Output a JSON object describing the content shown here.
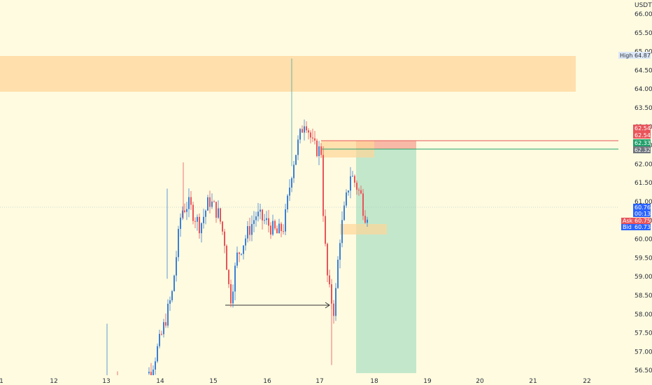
{
  "price_scale": {
    "currency": "USDT",
    "ticks": [
      "66.00",
      "65.50",
      "65.00",
      "64.50",
      "64.00",
      "63.50",
      "63.00",
      "62.50",
      "62.00",
      "61.50",
      "61.00",
      "60.50",
      "60.00",
      "59.50",
      "59.00",
      "58.50",
      "58.00",
      "57.50",
      "57.00",
      "56.50"
    ]
  },
  "time_scale": {
    "ticks": [
      {
        "label": "1",
        "bold": false
      },
      {
        "label": "12",
        "bold": true
      },
      {
        "label": "13",
        "bold": false
      },
      {
        "label": "14",
        "bold": false
      },
      {
        "label": "15",
        "bold": false
      },
      {
        "label": "16",
        "bold": false
      },
      {
        "label": "17",
        "bold": false
      },
      {
        "label": "18",
        "bold": false
      },
      {
        "label": "19",
        "bold": false
      },
      {
        "label": "20",
        "bold": false
      },
      {
        "label": "21",
        "bold": false
      },
      {
        "label": "22",
        "bold": false
      }
    ]
  },
  "price_tags": {
    "high": {
      "label": "High",
      "value": "64.87"
    },
    "stop_1": {
      "value": "62.54"
    },
    "stop_2": {
      "value": "62.54"
    },
    "entry_1": {
      "value": "62.33"
    },
    "entry_2": {
      "value": "62.32"
    },
    "last": {
      "value": "60.76",
      "countdown": "00:13"
    },
    "ask": {
      "label": "Ask",
      "value": "60.75"
    },
    "bid": {
      "label": "Bid",
      "value": "60.73"
    }
  },
  "colors": {
    "background": "#fefbe0",
    "up": "#3b7fd4",
    "down": "#e8545a",
    "resistance_zone": "#ffd699",
    "profit_zone": "#b9e3c6",
    "stop_zone": "#f7b3a0",
    "entry_tag": "#22a06b",
    "neutral_tag": "#70757d",
    "last_price": "#2962ff"
  }
}
